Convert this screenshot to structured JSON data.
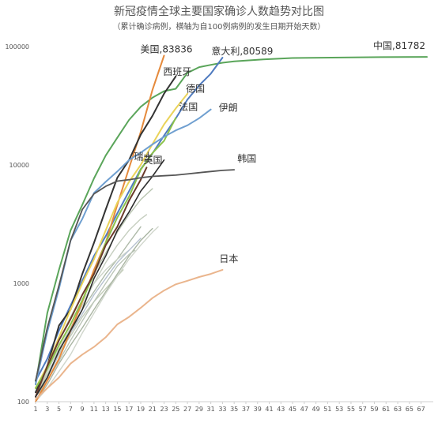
{
  "chart_data": {
    "type": "line",
    "title": "新冠疫情全球主要国家确诊人数趋势对比图",
    "subtitle": "（累计确诊病例，横轴为自100例病例的发生日期开始天数）",
    "xlabel": "",
    "ylabel": "",
    "y_scale": "log",
    "xlim": [
      1,
      68
    ],
    "ylim": [
      100,
      100000
    ],
    "x_ticks": [
      1,
      3,
      5,
      7,
      9,
      11,
      13,
      15,
      17,
      19,
      21,
      23,
      25,
      27,
      29,
      31,
      33,
      35,
      37,
      39,
      41,
      43,
      45,
      47,
      49,
      51,
      53,
      55,
      57,
      59,
      61,
      63,
      65,
      67
    ],
    "y_ticks": [
      {
        "value": 100,
        "label": "100"
      },
      {
        "value": 1000,
        "label": "1000"
      },
      {
        "value": 10000,
        "label": "10000"
      },
      {
        "value": 100000,
        "label": "100000"
      }
    ],
    "grid": false,
    "series": [
      {
        "name": "中国,81782",
        "color": "#5aa55a",
        "width": 2,
        "x": [
          1,
          3,
          5,
          7,
          9,
          11,
          13,
          15,
          17,
          19,
          21,
          23,
          25,
          27,
          29,
          31,
          33,
          35,
          40,
          45,
          50,
          55,
          60,
          68
        ],
        "y": [
          140,
          560,
          1300,
          2800,
          4600,
          7700,
          12000,
          17000,
          24000,
          31000,
          37000,
          42000,
          44000,
          60000,
          67000,
          70000,
          73000,
          75000,
          78000,
          80000,
          80500,
          81000,
          81400,
          81782
        ]
      },
      {
        "name": "意大利,80589",
        "color": "#4f7bbf",
        "width": 2,
        "x": [
          1,
          3,
          5,
          7,
          9,
          11,
          13,
          15,
          17,
          19,
          21,
          23,
          25,
          27,
          29,
          31,
          33
        ],
        "y": [
          150,
          230,
          400,
          650,
          1050,
          1700,
          2500,
          3900,
          6000,
          9200,
          12500,
          17700,
          24700,
          35700,
          47000,
          59000,
          80589
        ]
      },
      {
        "name": "美国,83836",
        "color": "#e58a3c",
        "width": 2,
        "x": [
          1,
          3,
          5,
          7,
          9,
          11,
          13,
          15,
          17,
          19,
          21,
          23
        ],
        "y": [
          100,
          150,
          230,
          400,
          700,
          1300,
          2200,
          4600,
          9400,
          19000,
          43000,
          83836
        ]
      },
      {
        "name": "西班牙",
        "color": "#333333",
        "width": 2,
        "x": [
          1,
          3,
          5,
          7,
          9,
          11,
          13,
          15,
          17,
          19,
          21,
          23,
          25
        ],
        "y": [
          120,
          200,
          440,
          600,
          1200,
          2200,
          4200,
          7800,
          11000,
          18000,
          26000,
          40000,
          56000
        ]
      },
      {
        "name": "德国",
        "color": "#ead35a",
        "width": 2,
        "x": [
          1,
          3,
          5,
          7,
          9,
          11,
          13,
          15,
          17,
          19,
          21,
          23,
          25,
          27
        ],
        "y": [
          130,
          200,
          350,
          600,
          1000,
          1600,
          2800,
          4800,
          7200,
          10000,
          15000,
          22000,
          30000,
          40000
        ]
      },
      {
        "name": "法国",
        "color": "#8cc24a",
        "width": 2,
        "x": [
          1,
          3,
          5,
          7,
          9,
          11,
          13,
          15,
          17,
          19,
          21,
          23,
          25
        ],
        "y": [
          130,
          190,
          300,
          450,
          720,
          1200,
          2200,
          3600,
          5400,
          9100,
          12600,
          16000,
          25000
        ]
      },
      {
        "name": "伊朗",
        "color": "#6f9fd0",
        "width": 2,
        "x": [
          1,
          3,
          5,
          7,
          9,
          11,
          13,
          15,
          17,
          19,
          21,
          23,
          25,
          27,
          29,
          31
        ],
        "y": [
          140,
          390,
          900,
          2300,
          3500,
          5800,
          7200,
          8800,
          11000,
          12700,
          14900,
          17300,
          19600,
          21600,
          24800,
          29400
        ]
      },
      {
        "name": "瑞士",
        "color": "#6b3a2b",
        "width": 2,
        "x": [
          1,
          3,
          5,
          7,
          9,
          11,
          13,
          15,
          17,
          19,
          20
        ],
        "y": [
          110,
          200,
          330,
          500,
          800,
          1200,
          2100,
          3000,
          5000,
          7500,
          9500
        ]
      },
      {
        "name": "英国",
        "color": "#2d2d2d",
        "width": 1.6,
        "x": [
          1,
          3,
          5,
          7,
          9,
          11,
          13,
          15,
          17,
          19,
          21,
          23
        ],
        "y": [
          110,
          160,
          270,
          400,
          600,
          1100,
          1700,
          2800,
          4000,
          6000,
          8000,
          11000
        ]
      },
      {
        "name": "韩国",
        "color": "#555555",
        "width": 1.8,
        "x": [
          1,
          3,
          5,
          7,
          9,
          11,
          13,
          15,
          17,
          19,
          21,
          23,
          25,
          27,
          29,
          31,
          33,
          35
        ],
        "y": [
          150,
          420,
          960,
          2300,
          4200,
          5700,
          6600,
          7300,
          7500,
          7800,
          8000,
          8100,
          8200,
          8400,
          8600,
          8800,
          9000,
          9100
        ]
      },
      {
        "name": "日本",
        "color": "#eab58d",
        "width": 2,
        "x": [
          1,
          3,
          5,
          7,
          9,
          11,
          13,
          15,
          17,
          19,
          21,
          23,
          25,
          27,
          29,
          31,
          33
        ],
        "y": [
          105,
          130,
          160,
          210,
          250,
          290,
          350,
          450,
          520,
          620,
          750,
          870,
          980,
          1050,
          1130,
          1200,
          1300
        ]
      },
      {
        "name": "",
        "color": "#b8c4b0",
        "width": 1.4,
        "x": [
          1,
          3,
          5,
          7,
          9,
          11,
          13,
          15,
          17,
          19,
          21
        ],
        "y": [
          110,
          190,
          330,
          520,
          800,
          1200,
          1800,
          2700,
          3800,
          5100,
          6300
        ]
      },
      {
        "name": "",
        "color": "#c6cfc0",
        "width": 1.4,
        "x": [
          1,
          3,
          5,
          7,
          9,
          11,
          13,
          15,
          17,
          19,
          20
        ],
        "y": [
          110,
          180,
          280,
          420,
          650,
          1000,
          1500,
          2100,
          2800,
          3500,
          3800
        ]
      },
      {
        "name": "",
        "color": "#aebaa8",
        "width": 1.4,
        "x": [
          1,
          3,
          5,
          7,
          9,
          11,
          13,
          15,
          17,
          19
        ],
        "y": [
          100,
          150,
          230,
          380,
          600,
          850,
          1200,
          1600,
          2200,
          3000
        ]
      },
      {
        "name": "",
        "color": "#cdd5c8",
        "width": 1.4,
        "x": [
          1,
          3,
          5,
          7,
          9,
          11,
          13,
          15,
          17
        ],
        "y": [
          120,
          200,
          300,
          450,
          700,
          1000,
          1300,
          1600,
          1900
        ]
      },
      {
        "name": "",
        "color": "#b6c2d0",
        "width": 1.4,
        "x": [
          1,
          3,
          5,
          7,
          9,
          11,
          13,
          15,
          17,
          19
        ],
        "y": [
          100,
          160,
          250,
          380,
          550,
          800,
          1100,
          1500,
          1900,
          2400
        ]
      },
      {
        "name": "",
        "color": "#c2ccb8",
        "width": 1.4,
        "x": [
          1,
          3,
          5,
          7,
          9,
          11,
          13,
          15,
          16
        ],
        "y": [
          110,
          170,
          260,
          360,
          520,
          700,
          900,
          1150,
          1300
        ]
      },
      {
        "name": "",
        "color": "#a9b5a2",
        "width": 1.4,
        "x": [
          1,
          3,
          5,
          7,
          9,
          11,
          13,
          15,
          17,
          19,
          21
        ],
        "y": [
          100,
          140,
          210,
          300,
          420,
          600,
          850,
          1200,
          1700,
          2300,
          2900
        ]
      },
      {
        "name": "",
        "color": "#d0d6cc",
        "width": 1.4,
        "x": [
          1,
          3,
          5,
          7,
          9,
          11,
          13,
          15,
          17,
          19,
          21,
          22
        ],
        "y": [
          100,
          130,
          180,
          250,
          380,
          560,
          820,
          1150,
          1600,
          2100,
          2700,
          3000
        ]
      },
      {
        "name": "",
        "color": "#bcc6b8",
        "width": 1.4,
        "x": [
          1,
          3,
          5,
          7,
          9,
          11,
          13,
          15,
          17,
          18
        ],
        "y": [
          110,
          150,
          220,
          330,
          480,
          700,
          1000,
          1400,
          1750,
          1900
        ]
      }
    ]
  }
}
